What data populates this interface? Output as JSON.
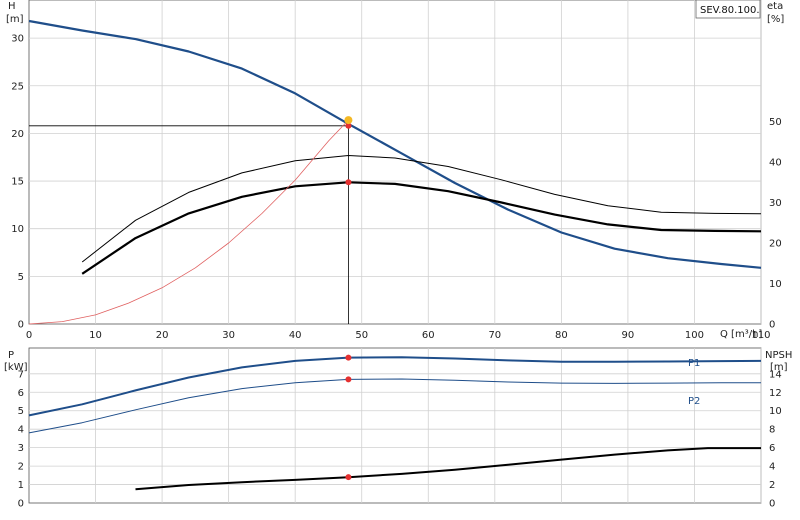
{
  "model_label": "SEV.80.100.",
  "chart_data": [
    {
      "type": "line",
      "x_label": "Q [m³/h]",
      "xlim": [
        0,
        110
      ],
      "x_ticks": [
        0,
        10,
        20,
        30,
        40,
        50,
        60,
        70,
        80,
        90,
        100,
        110
      ],
      "left_axis": {
        "name": "H",
        "unit": "[m]",
        "lim": [
          0,
          34
        ],
        "ticks": [
          0,
          5,
          10,
          15,
          20,
          25,
          30
        ]
      },
      "right_axis": {
        "name": "eta",
        "unit": "[%]",
        "lim": [
          0,
          80
        ],
        "ticks": [
          0,
          10,
          20,
          30,
          40,
          50
        ]
      },
      "grid": true,
      "duty_point": {
        "Q": 48,
        "H": 20.8
      },
      "series": [
        {
          "axis": "left",
          "color": "#1f4e8a",
          "width": 2.2,
          "x": [
            0,
            8,
            16,
            24,
            32,
            40,
            48,
            56,
            64,
            72,
            80,
            88,
            96,
            104,
            110
          ],
          "y": [
            31.8,
            30.8,
            29.9,
            28.6,
            26.8,
            24.2,
            21.0,
            17.9,
            14.8,
            12.0,
            9.6,
            7.9,
            6.9,
            6.3,
            5.9
          ],
          "markers": [
            {
              "x": 48,
              "y": 20.8,
              "color": "#e53030",
              "r": 3
            }
          ]
        },
        {
          "axis": "right",
          "color": "#000000",
          "width": 1.0,
          "x": [
            8,
            16,
            24,
            32,
            40,
            48,
            55,
            63,
            71,
            79,
            87,
            95,
            103,
            110
          ],
          "y": [
            15.3,
            25.6,
            32.5,
            37.3,
            40.3,
            41.6,
            41.0,
            38.9,
            35.6,
            32.0,
            29.2,
            27.6,
            27.3,
            27.2
          ]
        },
        {
          "axis": "right",
          "color": "#000000",
          "width": 2.2,
          "x": [
            8,
            16,
            24,
            32,
            40,
            48,
            55,
            63,
            71,
            79,
            87,
            95,
            103,
            110
          ],
          "y": [
            12.4,
            21.2,
            27.3,
            31.4,
            34.0,
            35.0,
            34.6,
            32.8,
            30.0,
            27.0,
            24.6,
            23.2,
            23.0,
            22.9
          ],
          "markers": [
            {
              "x": 48,
              "y": 35.0,
              "color": "#e53030",
              "r": 3
            }
          ]
        },
        {
          "axis": "left",
          "color": "#e06060",
          "width": 0.8,
          "x": [
            0,
            5,
            10,
            15,
            20,
            25,
            30,
            35,
            40,
            45,
            48
          ],
          "y": [
            0,
            0.25,
            0.95,
            2.2,
            3.8,
            5.9,
            8.5,
            11.6,
            15.1,
            19.2,
            21.4
          ],
          "markers": [
            {
              "x": 48,
              "y": 21.4,
              "color": "#f4b824",
              "r": 4
            }
          ]
        }
      ]
    },
    {
      "type": "line",
      "xlim": [
        0,
        110
      ],
      "left_axis": {
        "name": "P",
        "unit": "[kW]",
        "lim": [
          0,
          8.4
        ],
        "ticks": [
          0,
          1,
          2,
          3,
          4,
          5,
          6,
          7
        ]
      },
      "right_axis": {
        "name": "NPSH",
        "unit": "[m]",
        "lim": [
          0,
          16.8
        ],
        "ticks": [
          0,
          2,
          4,
          6,
          8,
          10,
          12,
          14
        ]
      },
      "grid": true,
      "series": [
        {
          "name": "P1",
          "axis": "left",
          "color": "#1f4e8a",
          "width": 2.0,
          "x": [
            0,
            8,
            16,
            24,
            32,
            40,
            48,
            56,
            64,
            72,
            80,
            88,
            96,
            104,
            110
          ],
          "y": [
            4.75,
            5.35,
            6.1,
            6.8,
            7.35,
            7.7,
            7.88,
            7.9,
            7.83,
            7.73,
            7.66,
            7.65,
            7.67,
            7.69,
            7.7
          ],
          "markers": [
            {
              "x": 48,
              "y": 7.88,
              "color": "#e53030",
              "r": 3
            }
          ]
        },
        {
          "name": "P2",
          "axis": "left",
          "color": "#1f4e8a",
          "width": 1.0,
          "x": [
            0,
            8,
            16,
            24,
            32,
            40,
            48,
            56,
            64,
            72,
            80,
            88,
            96,
            104,
            110
          ],
          "y": [
            3.8,
            4.35,
            5.05,
            5.7,
            6.2,
            6.52,
            6.7,
            6.72,
            6.65,
            6.56,
            6.5,
            6.48,
            6.5,
            6.52,
            6.52
          ],
          "markers": [
            {
              "x": 48,
              "y": 6.7,
              "color": "#e53030",
              "r": 3
            }
          ]
        },
        {
          "axis": "right",
          "color": "#000000",
          "width": 2.0,
          "x": [
            16,
            24,
            32,
            40,
            48,
            56,
            64,
            72,
            80,
            88,
            96,
            102,
            110
          ],
          "y": [
            1.5,
            1.95,
            2.25,
            2.5,
            2.8,
            3.15,
            3.6,
            4.15,
            4.7,
            5.25,
            5.7,
            5.95,
            5.95
          ],
          "markers": [
            {
              "x": 48,
              "y": 2.8,
              "color": "#e53030",
              "r": 3
            }
          ]
        }
      ]
    }
  ]
}
